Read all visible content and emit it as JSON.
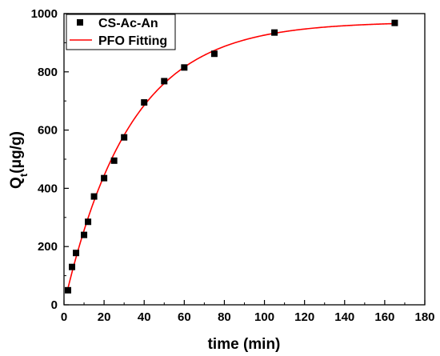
{
  "chart_data": {
    "type": "scatter",
    "xlabel": "time (min)",
    "ylabel": {
      "main": "Q",
      "subscript": "t",
      "unit": "(μg/g)"
    },
    "xlim": [
      0,
      180
    ],
    "ylim": [
      0,
      1000
    ],
    "x_ticks": [
      "0",
      "20",
      "40",
      "60",
      "80",
      "100",
      "120",
      "140",
      "160",
      "180"
    ],
    "y_ticks": [
      "0",
      "200",
      "400",
      "600",
      "800",
      "1000"
    ],
    "grid": false,
    "legend_position": "top-left",
    "series": [
      {
        "name": "CS-Ac-An",
        "kind": "scatter",
        "marker": "square",
        "color": "#000000",
        "points": [
          {
            "x": 2,
            "y": 50
          },
          {
            "x": 4,
            "y": 130
          },
          {
            "x": 6,
            "y": 178
          },
          {
            "x": 10,
            "y": 240
          },
          {
            "x": 12,
            "y": 285
          },
          {
            "x": 15,
            "y": 372
          },
          {
            "x": 20,
            "y": 435
          },
          {
            "x": 25,
            "y": 495
          },
          {
            "x": 30,
            "y": 575
          },
          {
            "x": 40,
            "y": 695
          },
          {
            "x": 50,
            "y": 768
          },
          {
            "x": 60,
            "y": 815
          },
          {
            "x": 75,
            "y": 862
          },
          {
            "x": 105,
            "y": 935
          },
          {
            "x": 165,
            "y": 968
          }
        ]
      },
      {
        "name": "PFO Fitting",
        "kind": "line",
        "color": "#ff0000",
        "model": {
          "qe": 972,
          "k1": 0.0305
        },
        "x_range": [
          2,
          165
        ]
      }
    ]
  }
}
